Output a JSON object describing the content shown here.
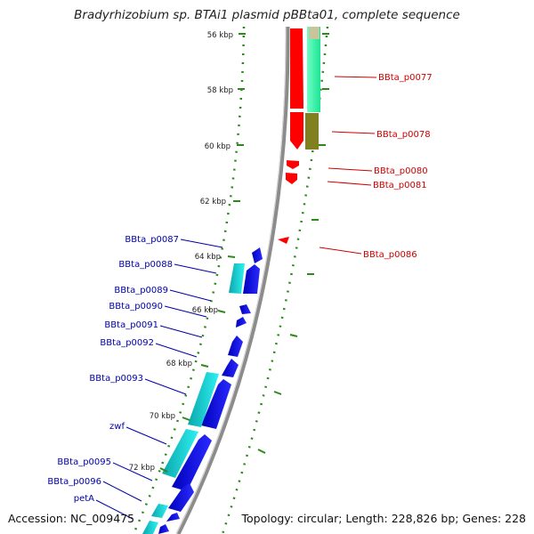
{
  "title": "Bradyrhizobium sp. BTAi1 plasmid pBBta01, complete sequence",
  "footer": {
    "accession": "Accession: NC_009475",
    "topology": "Topology: circular; Length: 228,826 bp; Genes: 228"
  },
  "ticks": [
    {
      "kbp": 56,
      "label": "56 kbp"
    },
    {
      "kbp": 58,
      "label": "58 kbp"
    },
    {
      "kbp": 60,
      "label": "60 kbp"
    },
    {
      "kbp": 62,
      "label": "62 kbp"
    },
    {
      "kbp": 64,
      "label": "64 kbp"
    },
    {
      "kbp": 66,
      "label": "66 kbp"
    },
    {
      "kbp": 68,
      "label": "68 kbp"
    },
    {
      "kbp": 70,
      "label": "70 kbp"
    },
    {
      "kbp": 72,
      "label": "72 kbp"
    }
  ],
  "forward_labels": [
    {
      "name": "BBta_p0077"
    },
    {
      "name": "BBta_p0078"
    },
    {
      "name": "BBta_p0080"
    },
    {
      "name": "BBta_p0081"
    },
    {
      "name": "BBta_p0086"
    }
  ],
  "reverse_labels": [
    {
      "name": "BBta_p0087"
    },
    {
      "name": "BBta_p0088"
    },
    {
      "name": "BBta_p0089"
    },
    {
      "name": "BBta_p0090"
    },
    {
      "name": "BBta_p0091"
    },
    {
      "name": "BBta_p0092"
    },
    {
      "name": "BBta_p0093"
    },
    {
      "name": "zwf"
    },
    {
      "name": "BBta_p0095"
    },
    {
      "name": "BBta_p0096"
    },
    {
      "name": "petA"
    }
  ],
  "colors": {
    "forward_gene": "#ff0000",
    "reverse_gene": "#0000ff",
    "forward_cog_main": "#33ffaa",
    "forward_cog_alt": "#808020",
    "reverse_cog": "#00c8c8",
    "tick_color": "#2a8a1a",
    "backbone": "#8c8c8c",
    "forward_label_color": "#cc0000",
    "reverse_label_color": "#0000aa"
  }
}
